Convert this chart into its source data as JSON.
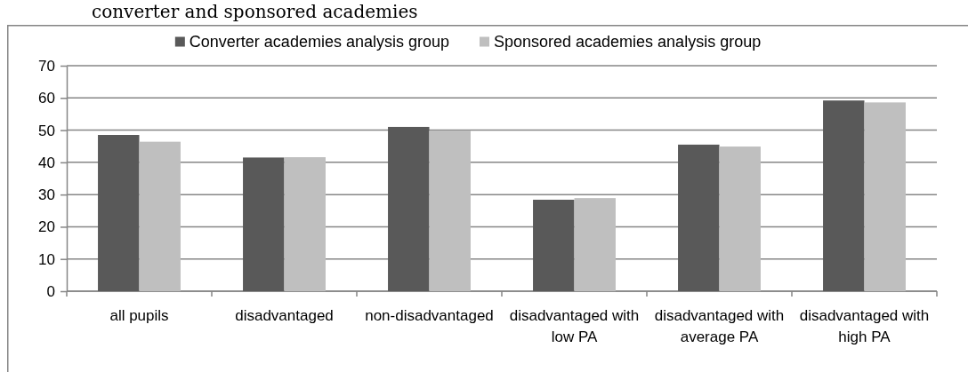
{
  "chart_data": {
    "type": "bar",
    "title": "converter and sponsored academies",
    "categories": [
      "all pupils",
      "disadvantaged",
      "non-disadvantaged",
      "disadvantaged with low PA",
      "disadvantaged with average PA",
      "disadvantaged with high PA"
    ],
    "series": [
      {
        "name": "Converter academies analysis group",
        "color": "#595959",
        "values": [
          48.5,
          41.5,
          51.0,
          28.4,
          45.5,
          59.2
        ]
      },
      {
        "name": "Sponsored academies analysis group",
        "color": "#bfbfbf",
        "values": [
          46.4,
          41.6,
          49.9,
          28.9,
          44.9,
          58.6
        ]
      }
    ],
    "ylim": [
      0,
      70
    ],
    "yticks": [
      0,
      10,
      20,
      30,
      40,
      50,
      60,
      70
    ],
    "grid": "y",
    "legend": "top"
  }
}
